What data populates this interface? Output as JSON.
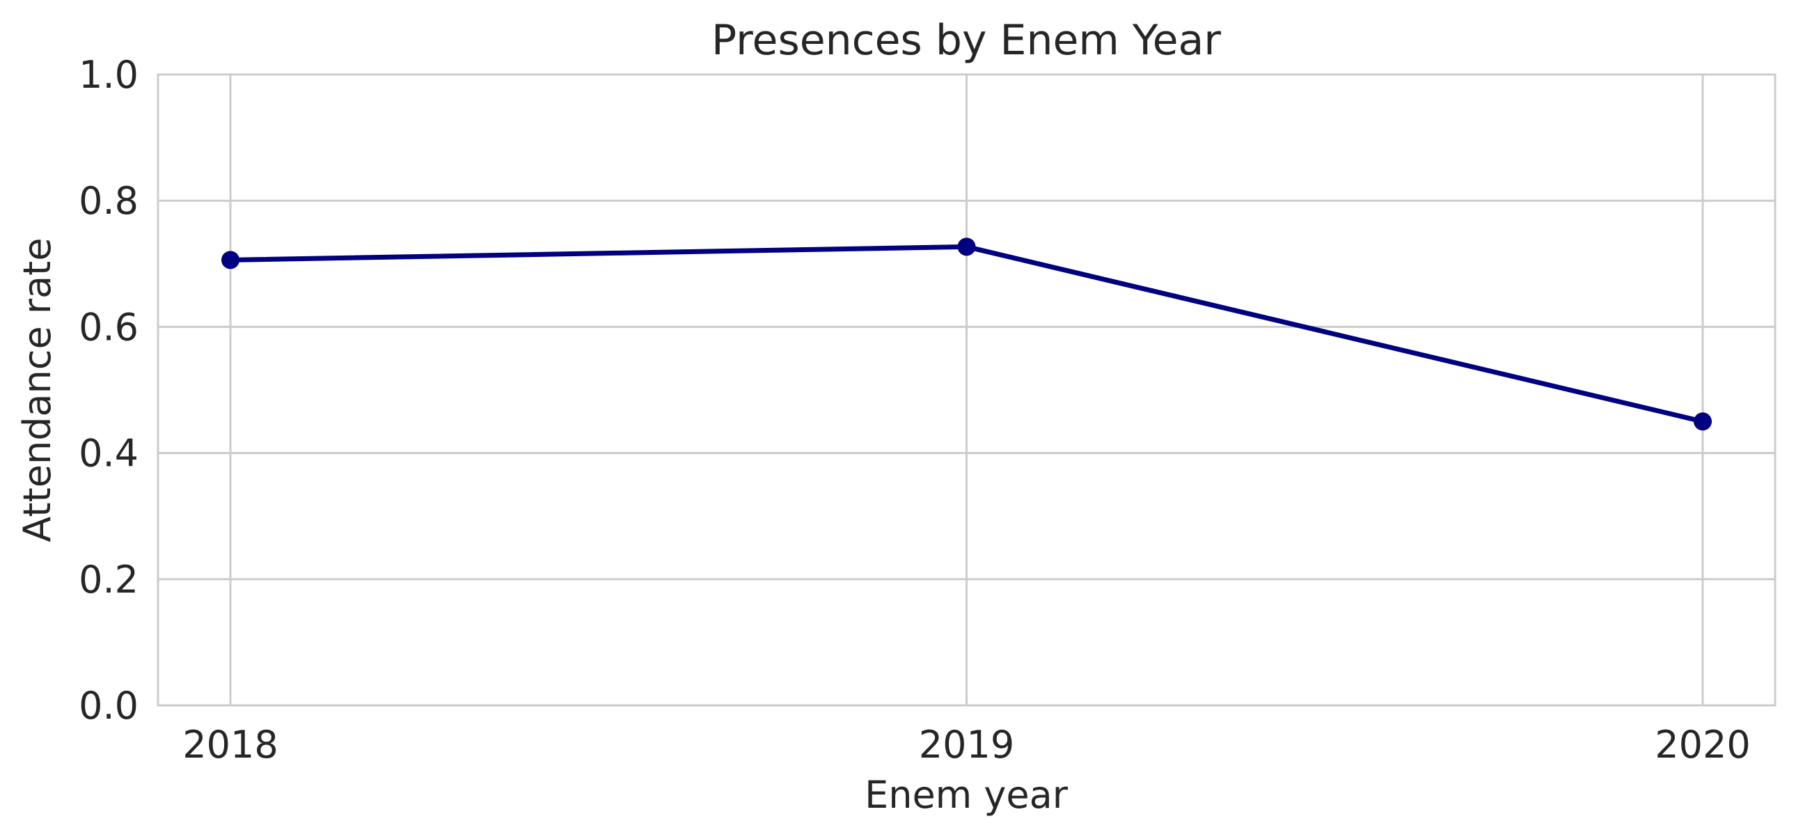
{
  "chart_data": {
    "type": "line",
    "title": "Presences by Enem Year",
    "xlabel": "Enem year",
    "ylabel": "Attendance rate",
    "categories": [
      "2018",
      "2019",
      "2020"
    ],
    "series": [
      {
        "values": [
          0.706,
          0.727,
          0.45
        ],
        "color": "#000080"
      }
    ],
    "ylim": [
      0,
      1.0
    ],
    "yticks": [
      "0.0",
      "0.2",
      "0.4",
      "0.6",
      "0.8",
      "1.0"
    ],
    "grid": true,
    "legend": "none"
  }
}
